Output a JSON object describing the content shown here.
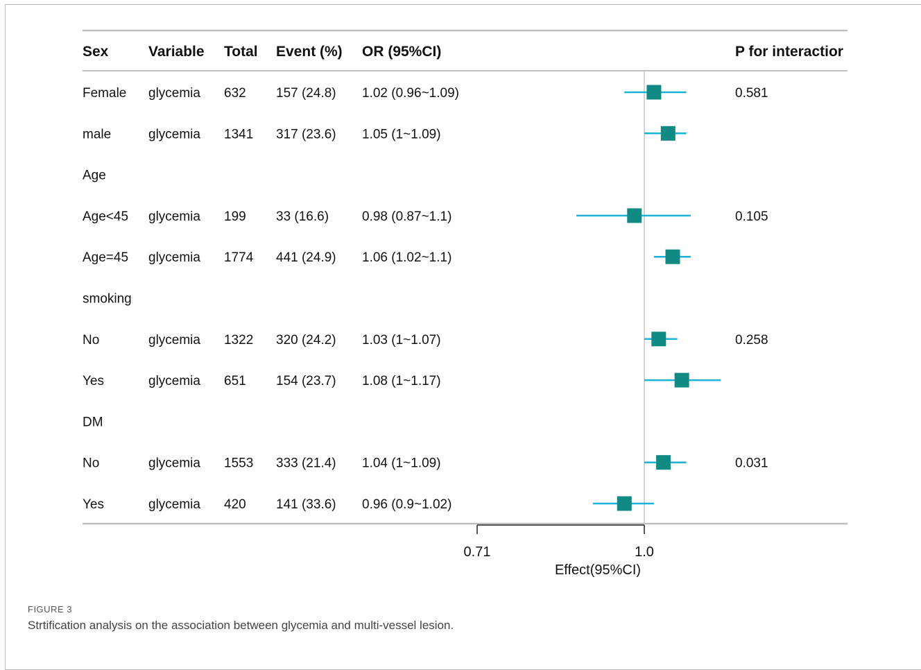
{
  "chart_data": {
    "type": "forest",
    "columns": [
      "Sex",
      "Variable",
      "Total",
      "Event (%)",
      "OR (95%CI)",
      "P for interactior"
    ],
    "rows": [
      {
        "group": "Female",
        "variable": "glycemia",
        "total": "632",
        "event": "157 (24.8)",
        "or_text": "1.02 (0.96~1.09)",
        "p": "0.581",
        "or": 1.02,
        "lo": 0.96,
        "hi": 1.09
      },
      {
        "group": "male",
        "variable": "glycemia",
        "total": "1341",
        "event": "317 (23.6)",
        "or_text": "1.05 (1~1.09)",
        "p": "",
        "or": 1.05,
        "lo": 1.0,
        "hi": 1.09
      },
      {
        "group": "Age",
        "variable": "",
        "total": "",
        "event": "",
        "or_text": "",
        "p": ""
      },
      {
        "group": "Age<45",
        "variable": "glycemia",
        "total": "199",
        "event": "33 (16.6)",
        "or_text": "0.98 (0.87~1.1)",
        "p": "0.105",
        "or": 0.98,
        "lo": 0.87,
        "hi": 1.1
      },
      {
        "group": "Age=45",
        "variable": "glycemia",
        "total": "1774",
        "event": "441 (24.9)",
        "or_text": "1.06 (1.02~1.1)",
        "p": "",
        "or": 1.06,
        "lo": 1.02,
        "hi": 1.1
      },
      {
        "group": "smoking",
        "variable": "",
        "total": "",
        "event": "",
        "or_text": "",
        "p": ""
      },
      {
        "group": "No",
        "variable": "glycemia",
        "total": "1322",
        "event": "320 (24.2)",
        "or_text": "1.03 (1~1.07)",
        "p": "0.258",
        "or": 1.03,
        "lo": 1.0,
        "hi": 1.07
      },
      {
        "group": "Yes",
        "variable": "glycemia",
        "total": "651",
        "event": "154 (23.7)",
        "or_text": "1.08 (1~1.17)",
        "p": "",
        "or": 1.08,
        "lo": 1.0,
        "hi": 1.17
      },
      {
        "group": "DM",
        "variable": "",
        "total": "",
        "event": "",
        "or_text": "",
        "p": ""
      },
      {
        "group": "No",
        "variable": "glycemia",
        "total": "1553",
        "event": "333 (21.4)",
        "or_text": "1.04 (1~1.09)",
        "p": "0.031",
        "or": 1.04,
        "lo": 1.0,
        "hi": 1.09
      },
      {
        "group": "Yes",
        "variable": "glycemia",
        "total": "420",
        "event": "141 (33.6)",
        "or_text": "0.96 (0.9~1.02)",
        "p": "",
        "or": 0.96,
        "lo": 0.9,
        "hi": 1.02
      }
    ],
    "xlabel": "Effect(95%CI)",
    "xticks": [
      0.71,
      1.0
    ],
    "xtick_labels": [
      "0.71",
      "1.0"
    ],
    "reference_line": 1.0,
    "scale": "log",
    "colors": {
      "marker": "#108a83",
      "ci_line": "#1ab3d8",
      "reference": "#c8c8c8"
    }
  },
  "caption": {
    "label": "FIGURE 3",
    "text": "Strtification analysis on the association between glycemia and multi-vessel lesion."
  }
}
